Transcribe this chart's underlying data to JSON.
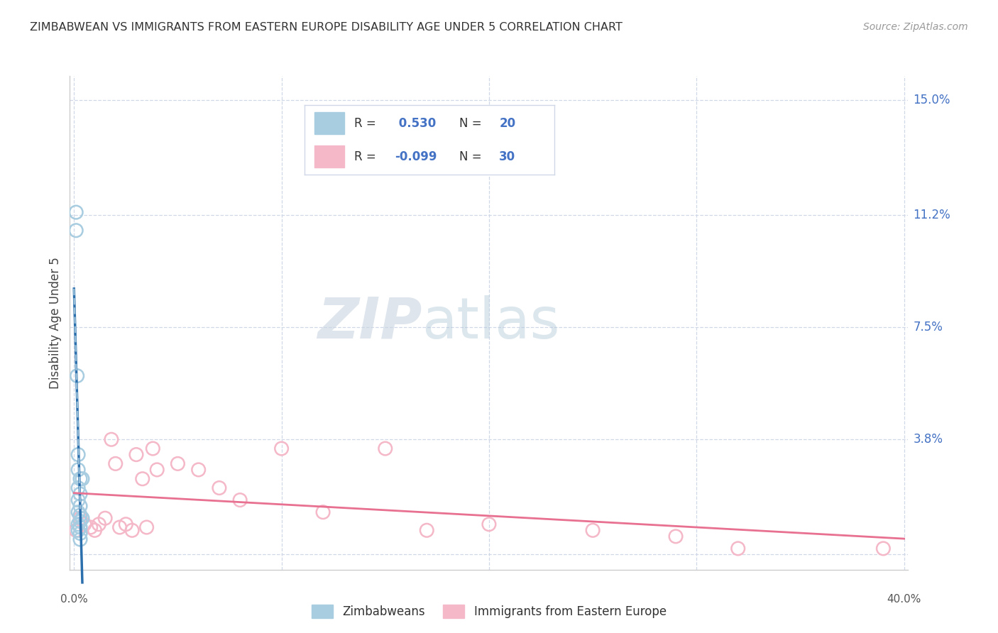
{
  "title": "ZIMBABWEAN VS IMMIGRANTS FROM EASTERN EUROPE DISABILITY AGE UNDER 5 CORRELATION CHART",
  "source": "Source: ZipAtlas.com",
  "ylabel": "Disability Age Under 5",
  "xlabel_zimbabwean": "Zimbabweans",
  "xlabel_eastern": "Immigrants from Eastern Europe",
  "xlim": [
    -0.002,
    0.402
  ],
  "ylim": [
    -0.005,
    0.158
  ],
  "ytick_vals": [
    0.0,
    0.038,
    0.075,
    0.112,
    0.15
  ],
  "ytick_labels": [
    "",
    "3.8%",
    "7.5%",
    "11.2%",
    "15.0%"
  ],
  "xtick_vals": [
    0.0,
    0.1,
    0.2,
    0.3,
    0.4
  ],
  "xtick_labels": [
    "0.0%",
    "",
    "",
    "",
    "40.0%"
  ],
  "r_zimbabwean": 0.53,
  "n_zimbabwean": 20,
  "r_eastern": -0.099,
  "n_eastern": 30,
  "color_zimbabwean": "#a8cce0",
  "color_eastern": "#f4b8c8",
  "trendline_color_zimbabwean": "#2c6fad",
  "trendline_color_eastern": "#e87090",
  "watermark_zip": "ZIP",
  "watermark_atlas": "atlas",
  "background_color": "#ffffff",
  "zimbabwean_points_x": [
    0.001,
    0.001,
    0.0015,
    0.002,
    0.002,
    0.002,
    0.002,
    0.002,
    0.002,
    0.002,
    0.003,
    0.003,
    0.003,
    0.003,
    0.003,
    0.003,
    0.003,
    0.003,
    0.004,
    0.004
  ],
  "zimbabwean_points_y": [
    0.113,
    0.107,
    0.059,
    0.033,
    0.028,
    0.022,
    0.018,
    0.014,
    0.01,
    0.008,
    0.025,
    0.02,
    0.016,
    0.013,
    0.011,
    0.009,
    0.007,
    0.005,
    0.025,
    0.012
  ],
  "eastern_points_x": [
    0.001,
    0.003,
    0.005,
    0.008,
    0.01,
    0.012,
    0.015,
    0.018,
    0.02,
    0.022,
    0.025,
    0.028,
    0.03,
    0.033,
    0.035,
    0.038,
    0.04,
    0.05,
    0.06,
    0.07,
    0.08,
    0.1,
    0.12,
    0.15,
    0.17,
    0.2,
    0.25,
    0.29,
    0.32,
    0.39
  ],
  "eastern_points_y": [
    0.008,
    0.012,
    0.01,
    0.009,
    0.008,
    0.01,
    0.012,
    0.038,
    0.03,
    0.009,
    0.01,
    0.008,
    0.033,
    0.025,
    0.009,
    0.035,
    0.028,
    0.03,
    0.028,
    0.022,
    0.018,
    0.035,
    0.014,
    0.035,
    0.008,
    0.01,
    0.008,
    0.006,
    0.002,
    0.002
  ],
  "legend_r_color": "#4472c4",
  "legend_n_color": "#4472c4",
  "grid_color": "#d0d8e8",
  "spine_color": "#cccccc",
  "tick_label_color_y": "#4472c4",
  "tick_label_color_x": "#555555"
}
